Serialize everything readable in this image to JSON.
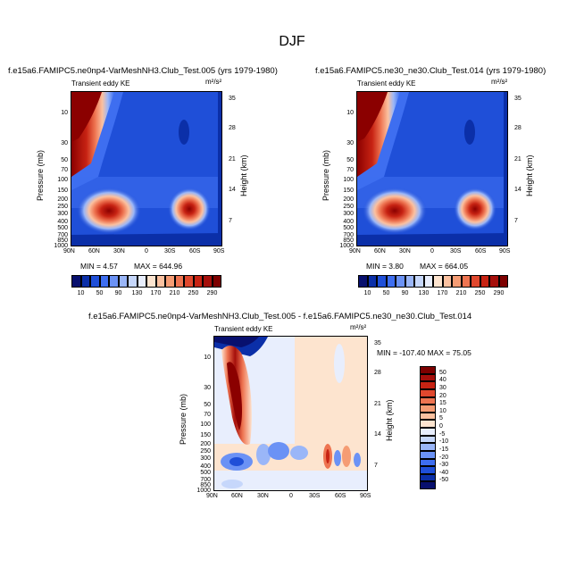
{
  "figure_title": "DJF",
  "colors": {
    "deep_blue": "#1f4fd8",
    "dark_red": "#8b0000",
    "light_peach": "#fde4cf"
  },
  "chart_data": [
    {
      "type": "heatmap",
      "panel": "top-left",
      "title": "f.e15a6.FAMIPC5.ne0np4-VarMeshNH3.Club_Test.005 (yrs 1979-1980)",
      "subtitle_left": "Transient eddy KE",
      "units": "m²/s²",
      "ylabel": "Pressure (mb)",
      "ylabel_right": "Height (km)",
      "x_ticks": [
        "90N",
        "60N",
        "30N",
        "0",
        "30S",
        "60S",
        "90S"
      ],
      "y_ticks": [
        "10",
        "30",
        "50",
        "70",
        "100",
        "150",
        "200",
        "250",
        "300",
        "400",
        "500",
        "700",
        "850",
        "1000"
      ],
      "y_ticks_right": [
        "35",
        "28",
        "21",
        "14",
        "7"
      ],
      "min_label": "MIN =   4.57",
      "max_label": "MAX = 644.96",
      "min": 4.57,
      "max": 644.96
    },
    {
      "type": "heatmap",
      "panel": "top-right",
      "title": "f.e15a6.FAMIPC5.ne30_ne30.Club_Test.014 (yrs 1979-1980)",
      "subtitle_left": "Transient eddy KE",
      "units": "m²/s²",
      "ylabel": "Pressure (mb)",
      "ylabel_right": "Height (km)",
      "x_ticks": [
        "90N",
        "60N",
        "30N",
        "0",
        "30S",
        "60S",
        "90S"
      ],
      "y_ticks": [
        "10",
        "30",
        "50",
        "70",
        "100",
        "150",
        "200",
        "250",
        "300",
        "400",
        "500",
        "700",
        "850",
        "1000"
      ],
      "y_ticks_right": [
        "35",
        "28",
        "21",
        "14",
        "7"
      ],
      "min_label": "MIN =   3.80",
      "max_label": "MAX = 664.05",
      "min": 3.8,
      "max": 664.05
    },
    {
      "type": "heatmap",
      "panel": "bottom-difference",
      "title": "f.e15a6.FAMIPC5.ne0np4-VarMeshNH3.Club_Test.005 - f.e15a6.FAMIPC5.ne30_ne30.Club_Test.014",
      "subtitle_left": "Transient eddy KE",
      "units": "m²/s²",
      "ylabel": "Pressure (mb)",
      "ylabel_right": "Height (km)",
      "x_ticks": [
        "90N",
        "60N",
        "30N",
        "0",
        "30S",
        "60S",
        "90S"
      ],
      "y_ticks": [
        "10",
        "30",
        "50",
        "70",
        "100",
        "150",
        "200",
        "250",
        "300",
        "400",
        "500",
        "700",
        "850",
        "1000"
      ],
      "y_ticks_right": [
        "35",
        "28",
        "21",
        "14",
        "7"
      ],
      "minmax_label": "MIN = -107.40  MAX =  75.05",
      "min": -107.4,
      "max": 75.05
    }
  ],
  "colorbar_top": {
    "labels": [
      "10",
      "50",
      "90",
      "130",
      "170",
      "210",
      "250",
      "290"
    ],
    "colors": [
      "#08106e",
      "#0b2fa8",
      "#1f4fd8",
      "#3e6ef0",
      "#6b92f5",
      "#9ab6f8",
      "#c6d7fb",
      "#e8eefd",
      "#fde4cf",
      "#fbc1a0",
      "#f59c74",
      "#ee7451",
      "#e0482e",
      "#c72313",
      "#a50f0b",
      "#7d0000"
    ]
  },
  "colorbar_diff": {
    "labels": [
      "50",
      "40",
      "30",
      "20",
      "15",
      "10",
      "5",
      "0",
      "-5",
      "-10",
      "-15",
      "-20",
      "-30",
      "-40",
      "-50"
    ],
    "colors": [
      "#7d0000",
      "#a50f0b",
      "#c72313",
      "#e0482e",
      "#ee7451",
      "#f59c74",
      "#fbc1a0",
      "#fde4cf",
      "#e8eefd",
      "#c6d7fb",
      "#9ab6f8",
      "#6b92f5",
      "#3e6ef0",
      "#1f4fd8",
      "#0b2fa8",
      "#08106e"
    ]
  }
}
